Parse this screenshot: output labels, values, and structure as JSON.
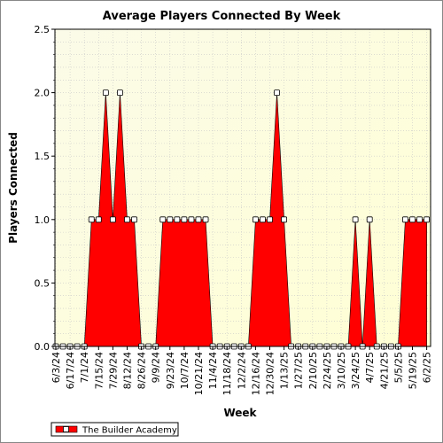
{
  "chart_data": {
    "type": "area",
    "title": "Average Players Connected By Week",
    "xlabel": "Week",
    "ylabel": "Players Connected",
    "ylim": [
      0,
      2.5
    ],
    "yticks": [
      "0.0",
      "0.5",
      "1.0",
      "1.5",
      "2.0",
      "2.5"
    ],
    "x_tick_labels": [
      "6/3/24",
      "6/17/24",
      "7/1/24",
      "7/15/24",
      "7/29/24",
      "8/12/24",
      "8/26/24",
      "9/9/24",
      "9/23/24",
      "10/7/24",
      "10/21/24",
      "11/4/24",
      "11/18/24",
      "12/2/24",
      "12/16/24",
      "12/30/24",
      "1/13/25",
      "1/27/25",
      "2/10/25",
      "2/24/25",
      "3/10/25",
      "3/24/25",
      "4/7/25",
      "4/21/25",
      "5/5/25",
      "5/19/25",
      "6/2/25"
    ],
    "x": [
      "6/3/24",
      "6/10/24",
      "6/17/24",
      "6/24/24",
      "7/1/24",
      "7/8/24",
      "7/15/24",
      "7/22/24",
      "7/29/24",
      "8/5/24",
      "8/12/24",
      "8/19/24",
      "8/26/24",
      "9/2/24",
      "9/9/24",
      "9/16/24",
      "9/23/24",
      "9/30/24",
      "10/7/24",
      "10/14/24",
      "10/21/24",
      "10/28/24",
      "11/4/24",
      "11/11/24",
      "11/18/24",
      "11/25/24",
      "12/2/24",
      "12/9/24",
      "12/16/24",
      "12/23/24",
      "12/30/24",
      "1/6/25",
      "1/13/25",
      "1/20/25",
      "1/27/25",
      "2/3/25",
      "2/10/25",
      "2/17/25",
      "2/24/25",
      "3/3/25",
      "3/10/25",
      "3/17/25",
      "3/24/25",
      "3/31/25",
      "4/7/25",
      "4/14/25",
      "4/21/25",
      "4/28/25",
      "5/5/25",
      "5/12/25",
      "5/19/25",
      "5/26/25",
      "6/2/25"
    ],
    "series": [
      {
        "name": "The Builder Academy",
        "color": "#ff0000",
        "values": [
          0,
          0,
          0,
          0,
          0,
          1,
          1,
          2,
          1,
          2,
          1,
          1,
          0,
          0,
          0,
          1,
          1,
          1,
          1,
          1,
          1,
          1,
          0,
          0,
          0,
          0,
          0,
          0,
          1,
          1,
          1,
          2,
          1,
          0,
          0,
          0,
          0,
          0,
          0,
          0,
          0,
          0,
          1,
          0,
          1,
          0,
          0,
          0,
          0,
          1,
          1,
          1,
          1
        ]
      }
    ],
    "grid": true,
    "legend_position": "bottom-left",
    "plot_background": "#ffffe0"
  }
}
